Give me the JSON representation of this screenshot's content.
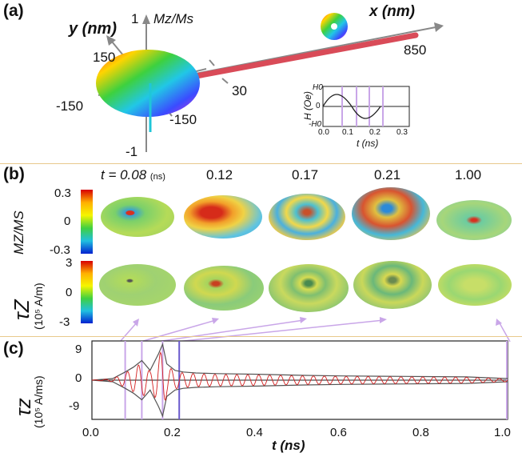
{
  "panel_a": {
    "label": "(a)",
    "x_axis_label": "x (nm)",
    "x_axis_max": "850",
    "y_axis_label": "y (nm)",
    "y_tick_pos": "150",
    "y_tick_neg": "-150",
    "y_tick_neg2": "-150",
    "z_axis_label": "Mz/Ms",
    "z_tick_pos": "1",
    "z_tick_neg": "-1",
    "rod_width_label": "30",
    "inset": {
      "ylabel": "H (Oe)",
      "ytick_top": "H0",
      "ytick_mid": "0",
      "ytick_bottom": "-H0",
      "xlabel": "t (ns)",
      "xticks": [
        "0.0",
        "0.1",
        "0.2",
        "0.3"
      ]
    }
  },
  "panel_b": {
    "label": "(b)",
    "time_prefix": "t = 0.08",
    "time_unit": "(ns)",
    "times": [
      "0.12",
      "0.17",
      "0.21",
      "1.00"
    ],
    "row1_label": "MZ/MS",
    "row1_ticks": [
      "0.3",
      "0",
      "-0.3"
    ],
    "row2_label": "τZ",
    "row2_unit": "(10⁵ A/m)",
    "row2_ticks": [
      "3",
      "0",
      "-3"
    ]
  },
  "panel_c": {
    "label": "(c)",
    "ylabel": "τz",
    "yunit": "(10⁵ A/ms)",
    "xlabel": "t (ns)",
    "yticks": [
      "9",
      "0",
      "-9"
    ],
    "xticks": [
      "0.0",
      "0.2",
      "0.4",
      "0.6",
      "0.8",
      "1.0"
    ]
  },
  "colors": {
    "accent_line": "#e8c98c",
    "marker_lines": "#c9a6e8",
    "rod": "#d94b58",
    "signal_red": "#d42020",
    "envelope": "#555555"
  },
  "chart_data": {
    "type": "line",
    "title": "",
    "xlabel": "t (ns)",
    "ylabel": "τz (10⁵ A/ms)",
    "xlim": [
      0.0,
      1.0
    ],
    "ylim": [
      -12,
      12
    ],
    "x": [
      0.0,
      0.05,
      0.08,
      0.1,
      0.12,
      0.14,
      0.16,
      0.17,
      0.18,
      0.2,
      0.22,
      0.25,
      0.3,
      0.4,
      0.5,
      0.6,
      0.7,
      0.8,
      0.9,
      1.0
    ],
    "series": [
      {
        "values": [
          0,
          0.5,
          2.5,
          4,
          6,
          3,
          8,
          11,
          5,
          3,
          2.5,
          2.2,
          2,
          1.8,
          1.5,
          1.3,
          1.2,
          1.1,
          1,
          0.5
        ]
      }
    ],
    "markers_t": [
      0.08,
      0.12,
      0.17,
      0.21
    ]
  }
}
